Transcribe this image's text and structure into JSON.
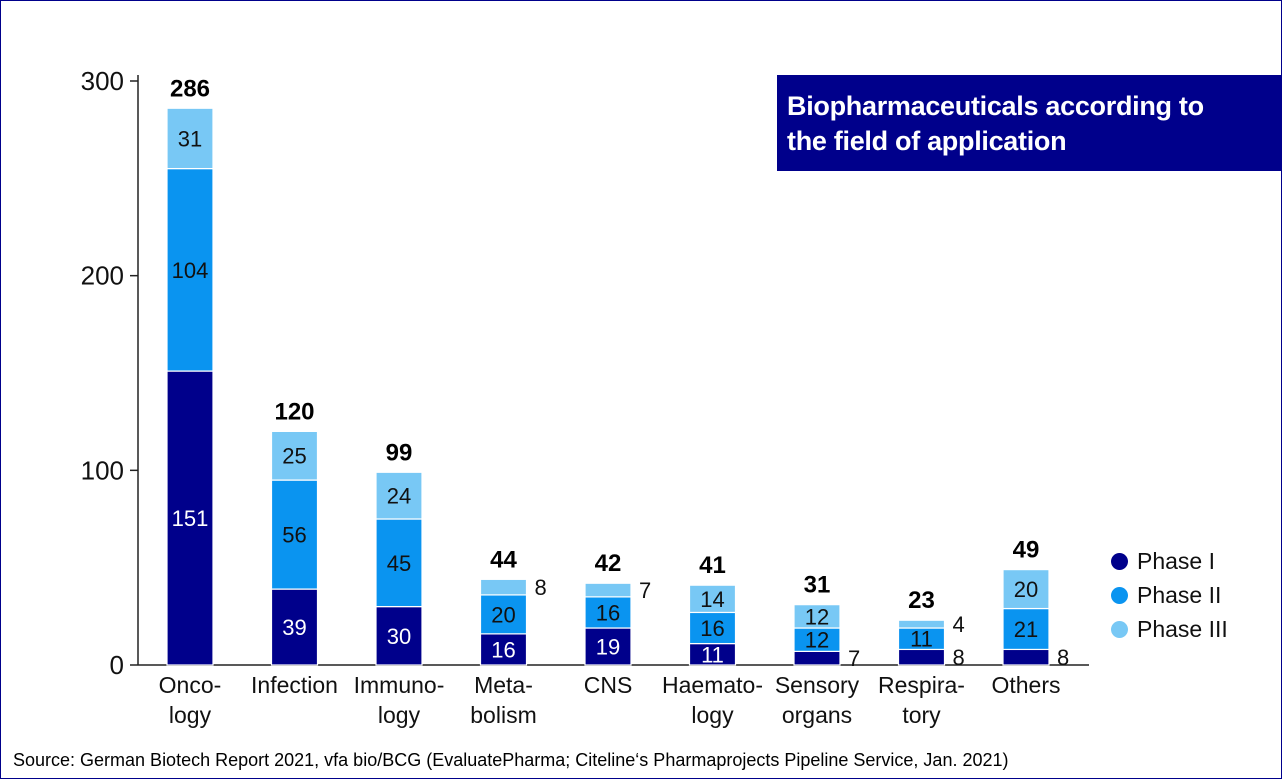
{
  "colors": {
    "phase1": "#00008b",
    "phase2": "#0a94f0",
    "phase3": "#78c8f5",
    "frame": "#00008b"
  },
  "title_box": {
    "line1": "Biopharmaceuticals according to",
    "line2": "the field of application"
  },
  "legend": {
    "items": [
      {
        "label": "Phase I",
        "color": "#00008b"
      },
      {
        "label": "Phase II",
        "color": "#0a94f0"
      },
      {
        "label": "Phase III",
        "color": "#78c8f5"
      }
    ]
  },
  "source": "Source: German Biotech Report 2021, vfa bio/BCG (EvaluatePharma; Citeline‘s Pharmaprojects Pipeline Service, Jan. 2021)",
  "chart_data": {
    "type": "bar",
    "stacked": true,
    "categories": [
      "Onco-\nlogy",
      "Infection",
      "Immuno-\nlogy",
      "Meta-\nbolism",
      "CNS",
      "Haemato-\nlogy",
      "Sensory\norgans",
      "Respira-\ntory",
      "Others"
    ],
    "series": [
      {
        "name": "Phase I",
        "values": [
          151,
          39,
          30,
          16,
          19,
          11,
          7,
          8,
          8
        ]
      },
      {
        "name": "Phase II",
        "values": [
          104,
          56,
          45,
          20,
          16,
          16,
          12,
          11,
          21
        ]
      },
      {
        "name": "Phase III",
        "values": [
          31,
          25,
          24,
          8,
          7,
          14,
          12,
          4,
          20
        ]
      }
    ],
    "totals": [
      286,
      120,
      99,
      44,
      42,
      41,
      31,
      23,
      49
    ],
    "outside_labels": [
      {
        "category_index": 3,
        "series_index": 2
      },
      {
        "category_index": 4,
        "series_index": 2
      },
      {
        "category_index": 6,
        "series_index": 0
      },
      {
        "category_index": 7,
        "series_index": 0
      },
      {
        "category_index": 7,
        "series_index": 2
      },
      {
        "category_index": 8,
        "series_index": 0
      }
    ],
    "yticks": [
      0,
      100,
      200,
      300
    ],
    "ylim": [
      0,
      300
    ],
    "grid": false,
    "legend_position": "right"
  }
}
